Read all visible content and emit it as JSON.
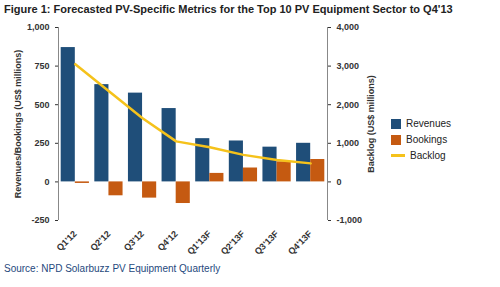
{
  "chart_data": {
    "type": "bar",
    "title": "Figure 1: Forecasted PV-Specific Metrics for the Top 10 PV Equipment Sector to Q4'13",
    "source": "Source: NPD Solarbuzz PV Equipment Quarterly",
    "categories": [
      "Q1'12",
      "Q2'12",
      "Q3'12",
      "Q4'12",
      "Q1'13F",
      "Q2'13F",
      "Q3'13F",
      "Q4'13F"
    ],
    "series": [
      {
        "name": "Revenues",
        "type": "bar",
        "color": "#1f4e79",
        "values": [
          870,
          630,
          575,
          475,
          280,
          265,
          225,
          250
        ]
      },
      {
        "name": "Bookings",
        "type": "bar",
        "color": "#c55a11",
        "values": [
          -10,
          -90,
          -105,
          -140,
          55,
          90,
          130,
          145
        ]
      },
      {
        "name": "Backlog",
        "type": "line",
        "axis": "y2",
        "color": "#f5c21b",
        "values": [
          3050,
          2350,
          1650,
          1050,
          900,
          700,
          570,
          480
        ]
      }
    ],
    "y_label": "Revenues/Bookings (US$ millions)",
    "y2_label": "Backlog (US$ millions)",
    "ylim": [
      -250,
      1000
    ],
    "yticks": [
      -250,
      0,
      250,
      500,
      750,
      {
        "value": 1000,
        "label": "1,000"
      }
    ],
    "y2lim": [
      -1000,
      4000
    ],
    "y2ticks": [
      {
        "value": -1000,
        "label": "-1,000"
      },
      0,
      {
        "value": 1000,
        "label": "1,000"
      },
      {
        "value": 2000,
        "label": "2,000"
      },
      {
        "value": 3000,
        "label": "3,000"
      },
      {
        "value": 4000,
        "label": "4,000"
      }
    ],
    "legend": "right",
    "grid": false
  }
}
